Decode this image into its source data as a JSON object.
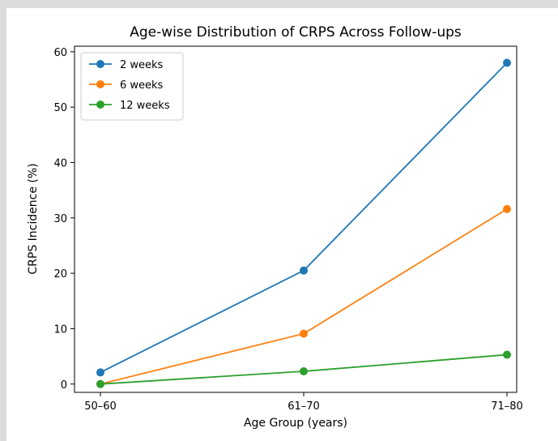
{
  "chart_data": {
    "type": "line",
    "title": "Age-wise Distribution of CRPS Across Follow-ups",
    "xlabel": "Age Group (years)",
    "ylabel": "CRPS Incidence (%)",
    "categories": [
      "50–60",
      "61–70",
      "71–80"
    ],
    "ylim": [
      -1.5,
      61
    ],
    "yticks": [
      0,
      10,
      20,
      30,
      40,
      50,
      60
    ],
    "grid": false,
    "legend_position": "top-left",
    "series": [
      {
        "name": "2 weeks",
        "values": [
          2.1,
          20.5,
          58.0
        ],
        "color": "#1f77b4"
      },
      {
        "name": "6 weeks",
        "values": [
          0.0,
          9.1,
          31.6
        ],
        "color": "#ff7f0e"
      },
      {
        "name": "12 weeks",
        "values": [
          0.0,
          2.3,
          5.3
        ],
        "color": "#2ca02c"
      }
    ]
  }
}
